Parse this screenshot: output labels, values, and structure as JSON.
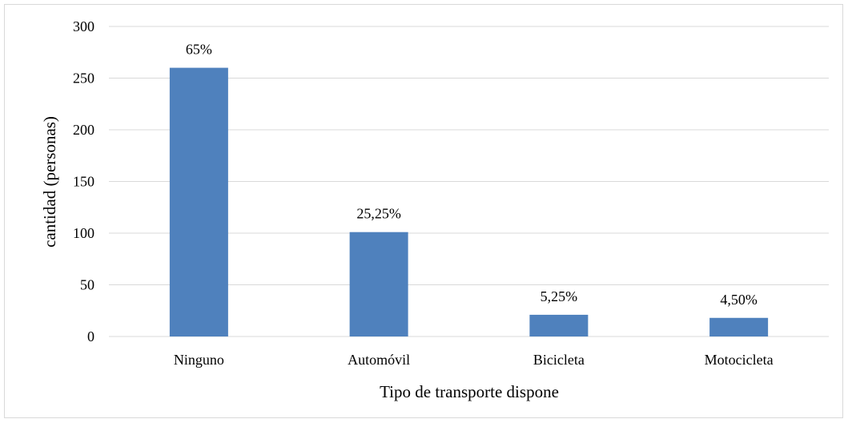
{
  "chart_data": {
    "type": "bar",
    "title": "",
    "xlabel": "Tipo de transporte dispone",
    "ylabel": "cantidad (personas)",
    "categories": [
      "Ninguno",
      "Automóvil",
      "Bicicleta",
      "Motocicleta"
    ],
    "values": [
      260,
      101,
      21,
      18
    ],
    "data_labels": [
      "65%",
      "25,25%",
      "5,25%",
      "4,50%"
    ],
    "ylim": [
      0,
      300
    ],
    "yticks": [
      0,
      50,
      100,
      150,
      200,
      250,
      300
    ],
    "grid": true,
    "legend": "none",
    "colors": {
      "bar": "#4f81bd",
      "grid": "#d9d9d9"
    }
  }
}
